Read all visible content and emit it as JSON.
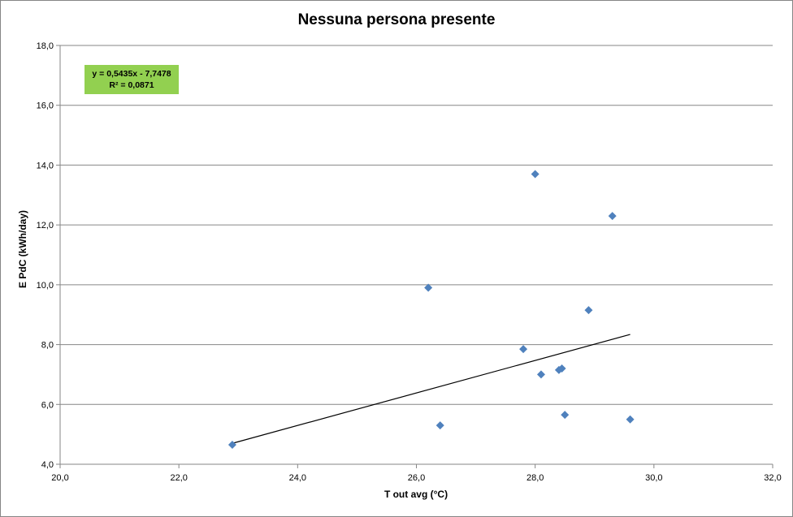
{
  "chart_data": {
    "type": "scatter",
    "title": "Nessuna persona presente",
    "xlabel": "T out avg (°C)",
    "ylabel": "E PdC (kWh/day)",
    "xlim": [
      20.0,
      32.0
    ],
    "ylim": [
      4.0,
      18.0
    ],
    "x_ticks": [
      "20,0",
      "22,0",
      "24,0",
      "26,0",
      "28,0",
      "30,0",
      "32,0"
    ],
    "y_ticks": [
      "4,0",
      "6,0",
      "8,0",
      "10,0",
      "12,0",
      "14,0",
      "16,0",
      "18,0"
    ],
    "grid": "horizontal major gridlines",
    "legend": "none",
    "series": [
      {
        "name": "E PdC",
        "marker": "diamond",
        "color": "#4f81bd",
        "points": [
          [
            22.9,
            4.65
          ],
          [
            26.2,
            9.9
          ],
          [
            26.4,
            5.3
          ],
          [
            27.8,
            7.85
          ],
          [
            28.0,
            13.7
          ],
          [
            28.1,
            7.0
          ],
          [
            28.4,
            7.15
          ],
          [
            28.45,
            7.2
          ],
          [
            28.5,
            5.65
          ],
          [
            28.9,
            9.15
          ],
          [
            29.3,
            12.3
          ],
          [
            29.6,
            5.5
          ]
        ]
      }
    ],
    "trendline": {
      "type": "linear",
      "slope": 0.5435,
      "intercept": -7.7478,
      "x_range": [
        22.9,
        29.6
      ],
      "color": "#000000"
    },
    "annotations": {
      "equation": "y = 0,5435x - 7,7478",
      "r_squared": "R² = 0,0871",
      "box_color": "#92d050"
    }
  }
}
